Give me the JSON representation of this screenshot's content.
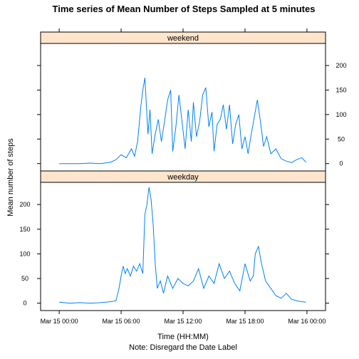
{
  "chart_data": {
    "type": "line",
    "title": "Time series of Mean Number of Steps Sampled at 5 minutes",
    "xlabel": "Time (HH:MM)",
    "xlabel_note": "Note: Disregard the Date Label",
    "ylabel": "Mean number of steps",
    "x_ticks": [
      "Mar 15 00:00",
      "Mar 15 06:00",
      "Mar 15 12:00",
      "Mar 15 18:00",
      "Mar 16 00:00"
    ],
    "x_range_hours": [
      -1.8,
      25.8
    ],
    "panels": [
      {
        "name": "weekend",
        "ylim": [
          -15,
          245
        ],
        "y_ticks": [
          0,
          50,
          100,
          150,
          200
        ],
        "y_tick_side": "right",
        "x_hours": [
          0,
          1,
          2,
          3,
          4,
          5,
          5.5,
          6,
          6.5,
          7,
          7.3,
          7.6,
          7.9,
          8.1,
          8.3,
          8.6,
          8.8,
          9,
          9.3,
          9.6,
          9.9,
          10.2,
          10.5,
          10.8,
          11,
          11.3,
          11.6,
          11.9,
          12.2,
          12.5,
          12.8,
          13,
          13.3,
          13.6,
          13.9,
          14.2,
          14.5,
          14.8,
          15,
          15.3,
          15.6,
          15.9,
          16.2,
          16.5,
          16.8,
          17.1,
          17.4,
          17.7,
          18,
          18.3,
          18.6,
          18.9,
          19.2,
          19.5,
          19.8,
          20.1,
          20.5,
          21,
          21.5,
          22,
          22.5,
          23,
          23.5,
          23.9
        ],
        "values": [
          0,
          0,
          0,
          1,
          0,
          3,
          8,
          18,
          12,
          30,
          15,
          45,
          115,
          150,
          175,
          60,
          110,
          20,
          60,
          90,
          45,
          85,
          130,
          150,
          25,
          75,
          140,
          85,
          30,
          110,
          45,
          125,
          55,
          85,
          140,
          155,
          75,
          105,
          25,
          80,
          90,
          120,
          70,
          120,
          40,
          80,
          100,
          30,
          55,
          20,
          60,
          95,
          130,
          85,
          35,
          55,
          20,
          30,
          10,
          5,
          2,
          8,
          12,
          3
        ]
      },
      {
        "name": "weekday",
        "ylim": [
          -15,
          245
        ],
        "y_ticks": [
          0,
          50,
          100,
          150,
          200
        ],
        "y_tick_side": "left",
        "x_hours": [
          0,
          1,
          2,
          3,
          4,
          5,
          5.5,
          5.8,
          6,
          6.2,
          6.4,
          6.6,
          6.9,
          7.2,
          7.5,
          7.8,
          8.1,
          8.3,
          8.5,
          8.7,
          8.9,
          9.1,
          9.3,
          9.5,
          9.8,
          10.1,
          10.5,
          11,
          11.5,
          12,
          12.5,
          13,
          13.5,
          14,
          14.5,
          15,
          15.5,
          16,
          16.5,
          17,
          17.5,
          18,
          18.5,
          18.8,
          19,
          19.3,
          19.6,
          20,
          20.5,
          21,
          21.5,
          22,
          22.5,
          23,
          23.5,
          23.9
        ],
        "values": [
          2,
          0,
          1,
          0,
          1,
          3,
          5,
          30,
          55,
          75,
          60,
          70,
          55,
          75,
          65,
          80,
          60,
          180,
          200,
          235,
          210,
          160,
          80,
          30,
          45,
          20,
          55,
          30,
          50,
          40,
          35,
          45,
          70,
          30,
          55,
          40,
          80,
          50,
          65,
          40,
          25,
          80,
          45,
          55,
          100,
          115,
          80,
          45,
          30,
          15,
          10,
          20,
          8,
          5,
          3,
          2
        ]
      }
    ]
  }
}
